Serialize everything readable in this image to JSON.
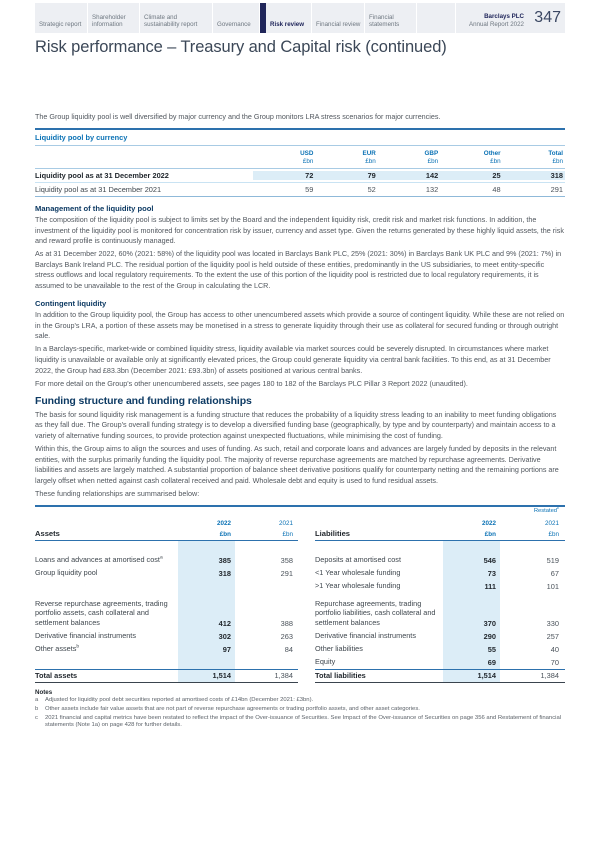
{
  "header": {
    "tabs": [
      {
        "label": "Strategic report"
      },
      {
        "label": "Shareholder information"
      },
      {
        "label": "Climate and sustainability report"
      },
      {
        "label": "Governance"
      },
      {
        "label": "Risk review",
        "active": true
      },
      {
        "label": "Financial review"
      },
      {
        "label": "Financial statements"
      }
    ],
    "brand": {
      "line1": "Barclays PLC",
      "line2": "Annual Report 2022"
    },
    "page_number": "347"
  },
  "page_title": "Risk performance – Treasury and Capital risk (continued)",
  "intro": "The Group liquidity pool is well diversified by major currency and the Group monitors LRA stress scenarios for major currencies.",
  "liquidity_table": {
    "title": "Liquidity pool by currency",
    "unit": "£bn",
    "columns": [
      "USD",
      "EUR",
      "GBP",
      "Other",
      "Total"
    ],
    "rows": [
      {
        "label": "Liquidity pool as at 31 December 2022",
        "values": [
          "72",
          "79",
          "142",
          "25",
          "318"
        ]
      },
      {
        "label": "Liquidity pool as at 31 December 2021",
        "values": [
          "59",
          "52",
          "132",
          "48",
          "291"
        ]
      }
    ]
  },
  "sections": {
    "management": {
      "heading": "Management of the liquidity pool",
      "paragraphs": [
        "The composition of the liquidity pool is subject to limits set by the Board and the independent liquidity risk, credit risk and market risk functions. In addition, the investment of the liquidity pool is monitored for concentration risk by issuer, currency and asset type. Given the returns generated by these highly liquid assets, the risk and reward profile is continuously managed.",
        "As at 31 December 2022, 60% (2021: 58%) of the liquidity pool was located in Barclays Bank PLC, 25% (2021: 30%) in Barclays Bank UK PLC and 9% (2021: 7%) in Barclays Bank Ireland PLC. The residual portion of the liquidity pool is held outside of these entities, predominantly in the US subsidiaries, to meet entity-specific stress outflows and local regulatory requirements. To the extent the use of this portion of the liquidity pool is restricted due to local regulatory requirements, it is assumed to be unavailable to the rest of the Group in calculating the LCR."
      ]
    },
    "contingent": {
      "heading": "Contingent liquidity",
      "paragraphs": [
        "In addition to the Group liquidity pool, the Group has access to other unencumbered assets which provide a source of contingent liquidity. While these are not relied on in the Group's LRA, a portion of these assets may be monetised in a stress to generate liquidity through their use as collateral for secured funding or through outright sale.",
        "In a Barclays-specific, market-wide or combined liquidity stress, liquidity available via market sources could be severely disrupted. In circumstances where market liquidity is unavailable or available only at significantly elevated prices, the Group could generate liquidity via central bank facilities. To this end, as at 31 December 2022, the Group had £83.3bn (December 2021: £93.3bn) of assets positioned at various central banks.",
        "For more detail on the Group's other unencumbered assets, see pages 180 to 182 of the Barclays PLC Pillar 3 Report 2022 (unaudited)."
      ]
    },
    "funding": {
      "heading": "Funding structure and funding relationships",
      "paragraphs": [
        "The basis for sound liquidity risk management is a funding structure that reduces the probability of a liquidity stress leading to an inability to meet funding obligations as they fall due. The Group's overall funding strategy is to develop a diversified funding base (geographically, by type and by counterparty) and maintain access to a variety of alternative funding sources, to provide protection against unexpected fluctuations, while minimising the cost of funding.",
        "Within this, the Group aims to align the sources and uses of funding. As such, retail and corporate loans and advances are largely funded by deposits in the relevant entities, with the surplus primarily funding the liquidity pool. The majority of reverse repurchase agreements are matched by repurchase agreements. Derivative liabilities and assets are largely matched. A substantial proportion of balance sheet derivative positions qualify for counterparty netting and the remaining portions are largely offset when netted against cash collateral received and paid. Wholesale debt and equity is used to fund residual assets.",
        "These funding relationships are summarised below:"
      ]
    }
  },
  "funding_table": {
    "restated_label": "Restated",
    "restated_sup": "c",
    "col_2022": "2022",
    "col_2021": "2021",
    "unit": "£bn",
    "assets": {
      "heading": "Assets",
      "rows": [
        {
          "label": "Loans and advances at amortised cost",
          "sup": "a",
          "v2022": "385",
          "v2021": "358"
        },
        {
          "label": "Group liquidity pool",
          "v2022": "318",
          "v2021": "291"
        },
        {
          "label": "Reverse repurchase agreements, trading portfolio assets, cash collateral and settlement balances",
          "v2022": "412",
          "v2021": "388"
        },
        {
          "label": "Derivative financial instruments",
          "v2022": "302",
          "v2021": "263"
        },
        {
          "label": "Other assets",
          "sup": "b",
          "v2022": "97",
          "v2021": "84"
        }
      ],
      "total": {
        "label": "Total assets",
        "v2022": "1,514",
        "v2021": "1,384"
      }
    },
    "liabilities": {
      "heading": "Liabilities",
      "rows": [
        {
          "label": "Deposits at amortised cost",
          "v2022": "546",
          "v2021": "519"
        },
        {
          "label": "<1 Year wholesale funding",
          "v2022": "73",
          "v2021": "67"
        },
        {
          "label": ">1 Year wholesale funding",
          "v2022": "111",
          "v2021": "101"
        },
        {
          "label": "Repurchase agreements, trading portfolio liabilities, cash collateral and settlement balances",
          "v2022": "370",
          "v2021": "330"
        },
        {
          "label": "Derivative financial instruments",
          "v2022": "290",
          "v2021": "257"
        },
        {
          "label": "Other liabilities",
          "v2022": "55",
          "v2021": "40"
        },
        {
          "label": "Equity",
          "v2022": "69",
          "v2021": "70"
        }
      ],
      "total": {
        "label": "Total liabilities",
        "v2022": "1,514",
        "v2021": "1,384"
      }
    }
  },
  "notes": {
    "heading": "Notes",
    "items": [
      {
        "ref": "a",
        "text": "Adjusted for liquidity pool debt securities reported at amortised costs of £14bn (December 2021: £3bn)."
      },
      {
        "ref": "b",
        "text": "Other assets include fair value assets that are not part of reverse repurchase agreements or trading portfolio assets, and other asset categories."
      },
      {
        "ref": "c",
        "text": "2021 financial and capital metrics have been restated to reflect the impact of the Over-issuance of Securities. See Impact of the Over-issuance of Securities on page 356 and Restatement of financial statements (Note 1a) on page 428 for further details."
      }
    ]
  },
  "colors": {
    "brand_navy": "#20265a",
    "heading_navy": "#0d3a63",
    "accent_blue": "#0b72b5",
    "highlight_band": "#dcedf7",
    "tab_strip_bg": "#edeff3"
  }
}
